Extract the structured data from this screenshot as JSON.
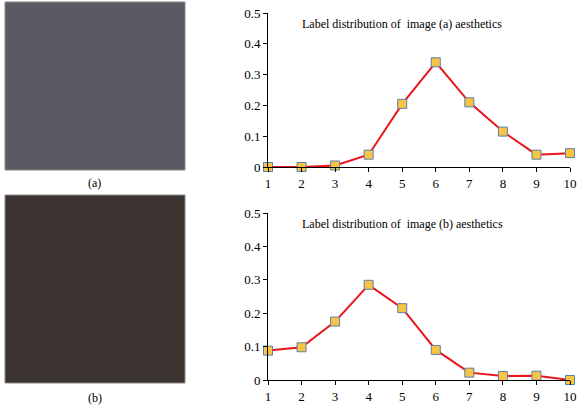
{
  "chart_data": [
    {
      "type": "line",
      "title": "Label distribution of  image (a) aesthetics",
      "x": [
        1,
        2,
        3,
        4,
        5,
        6,
        7,
        8,
        9,
        10
      ],
      "values": [
        0,
        0,
        0.005,
        0.04,
        0.205,
        0.34,
        0.21,
        0.115,
        0.04,
        0.045
      ],
      "color": "#e8151b",
      "marker": "square",
      "xlim": [
        1,
        10
      ],
      "xticks": [
        1,
        2,
        3,
        4,
        5,
        6,
        7,
        8,
        9,
        10
      ],
      "ylim": [
        0,
        0.5
      ],
      "yticks": [
        0,
        0.1,
        0.2,
        0.3,
        0.4,
        0.5
      ],
      "grid": false
    },
    {
      "type": "line",
      "title": "Label distribution of  image (b) aesthetics",
      "x": [
        1,
        2,
        3,
        4,
        5,
        6,
        7,
        8,
        9,
        10
      ],
      "values": [
        0.088,
        0.098,
        0.175,
        0.285,
        0.215,
        0.09,
        0.022,
        0.012,
        0.013,
        0
      ],
      "color": "#e8151b",
      "marker": "square",
      "xlim": [
        1,
        10
      ],
      "xticks": [
        1,
        2,
        3,
        4,
        5,
        6,
        7,
        8,
        9,
        10
      ],
      "ylim": [
        0,
        0.5
      ],
      "yticks": [
        0,
        0.1,
        0.2,
        0.3,
        0.4,
        0.5
      ],
      "grid": false
    }
  ],
  "images": [
    {
      "caption": "(a)"
    },
    {
      "caption": "(b)"
    }
  ]
}
